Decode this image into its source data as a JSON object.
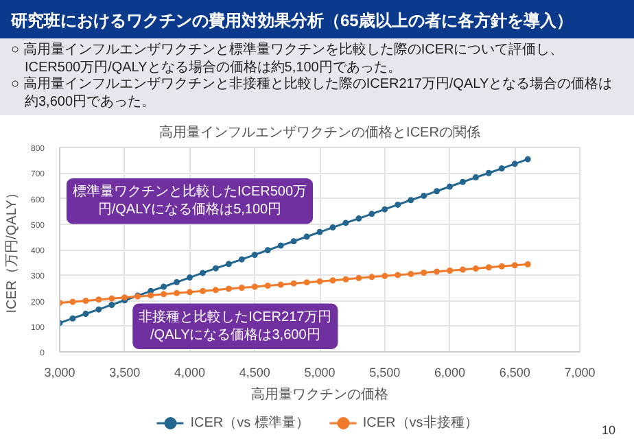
{
  "chart_data": {
    "type": "line",
    "title": "研究班におけるワクチンの費用対効果分析（65歳以上の者に各方針を導入）",
    "subtitle": "高用量インフルエンザワクチンの価格とICERの関係",
    "xlabel": "高用量ワクチンの価格",
    "ylabel": "ICER（万円/QALY）",
    "annotations": [
      "○ 高用量インフルエンザワクチンと標準量ワクチンを比較した際のICERについて評価し、 ICER500万円/QALYとなる場合の価格は約5,100円であった。",
      "○ 高用量インフルエンザワクチンと非接種と比較した際のICER217万円/QALYとなる場合の価格は約3,600円であった。",
      "標準量ワクチンと比較したICER500万円/QALYになる価格は5,100円",
      "非接種と比較したICER217万円/QALYになる価格は3,600円",
      "10"
    ],
    "x": [
      3000,
      3100,
      3200,
      3300,
      3400,
      3500,
      3600,
      3700,
      3800,
      3900,
      4000,
      4100,
      4200,
      4300,
      4400,
      4500,
      4600,
      4700,
      4800,
      4900,
      5000,
      5100,
      5200,
      5300,
      5400,
      5500,
      5600,
      5700,
      5800,
      5900,
      6000,
      6100,
      6200,
      6300,
      6400,
      6500,
      6600
    ],
    "series": [
      {
        "name": "ICER（vs 標準量）",
        "color": "#23668f",
        "values": [
          113,
          131,
          149,
          166,
          184,
          202,
          220,
          238,
          255,
          273,
          291,
          309,
          327,
          344,
          362,
          380,
          398,
          416,
          433,
          451,
          469,
          487,
          505,
          522,
          540,
          558,
          576,
          594,
          611,
          629,
          647,
          665,
          683,
          700,
          718,
          736,
          754
        ]
      },
      {
        "name": "ICER（vs非接種）",
        "color": "#f07a2a",
        "values": [
          192,
          196,
          200,
          205,
          209,
          213,
          217,
          221,
          226,
          230,
          234,
          238,
          242,
          247,
          251,
          255,
          259,
          263,
          268,
          272,
          276,
          280,
          284,
          289,
          293,
          297,
          301,
          305,
          310,
          314,
          318,
          322,
          326,
          331,
          335,
          339,
          343
        ]
      }
    ],
    "xlim": [
      3000,
      7000
    ],
    "xticks": [
      {
        "value": 3000,
        "label": "3,000"
      },
      {
        "value": 3500,
        "label": "3,500"
      },
      {
        "value": 4000,
        "label": "4,000"
      },
      {
        "value": 4500,
        "label": "4,500"
      },
      {
        "value": 5000,
        "label": "5,000"
      },
      {
        "value": 5500,
        "label": "5,500"
      },
      {
        "value": 6000,
        "label": "6,000"
      },
      {
        "value": 6500,
        "label": "6,500"
      },
      {
        "value": 7000,
        "label": "7,000"
      }
    ],
    "ylim": [
      0,
      800
    ],
    "yticks": [
      0,
      100,
      200,
      300,
      400,
      500,
      600,
      700,
      800
    ],
    "grid": true,
    "legend": "bottom",
    "marker": "circle",
    "line_style": "solid"
  }
}
